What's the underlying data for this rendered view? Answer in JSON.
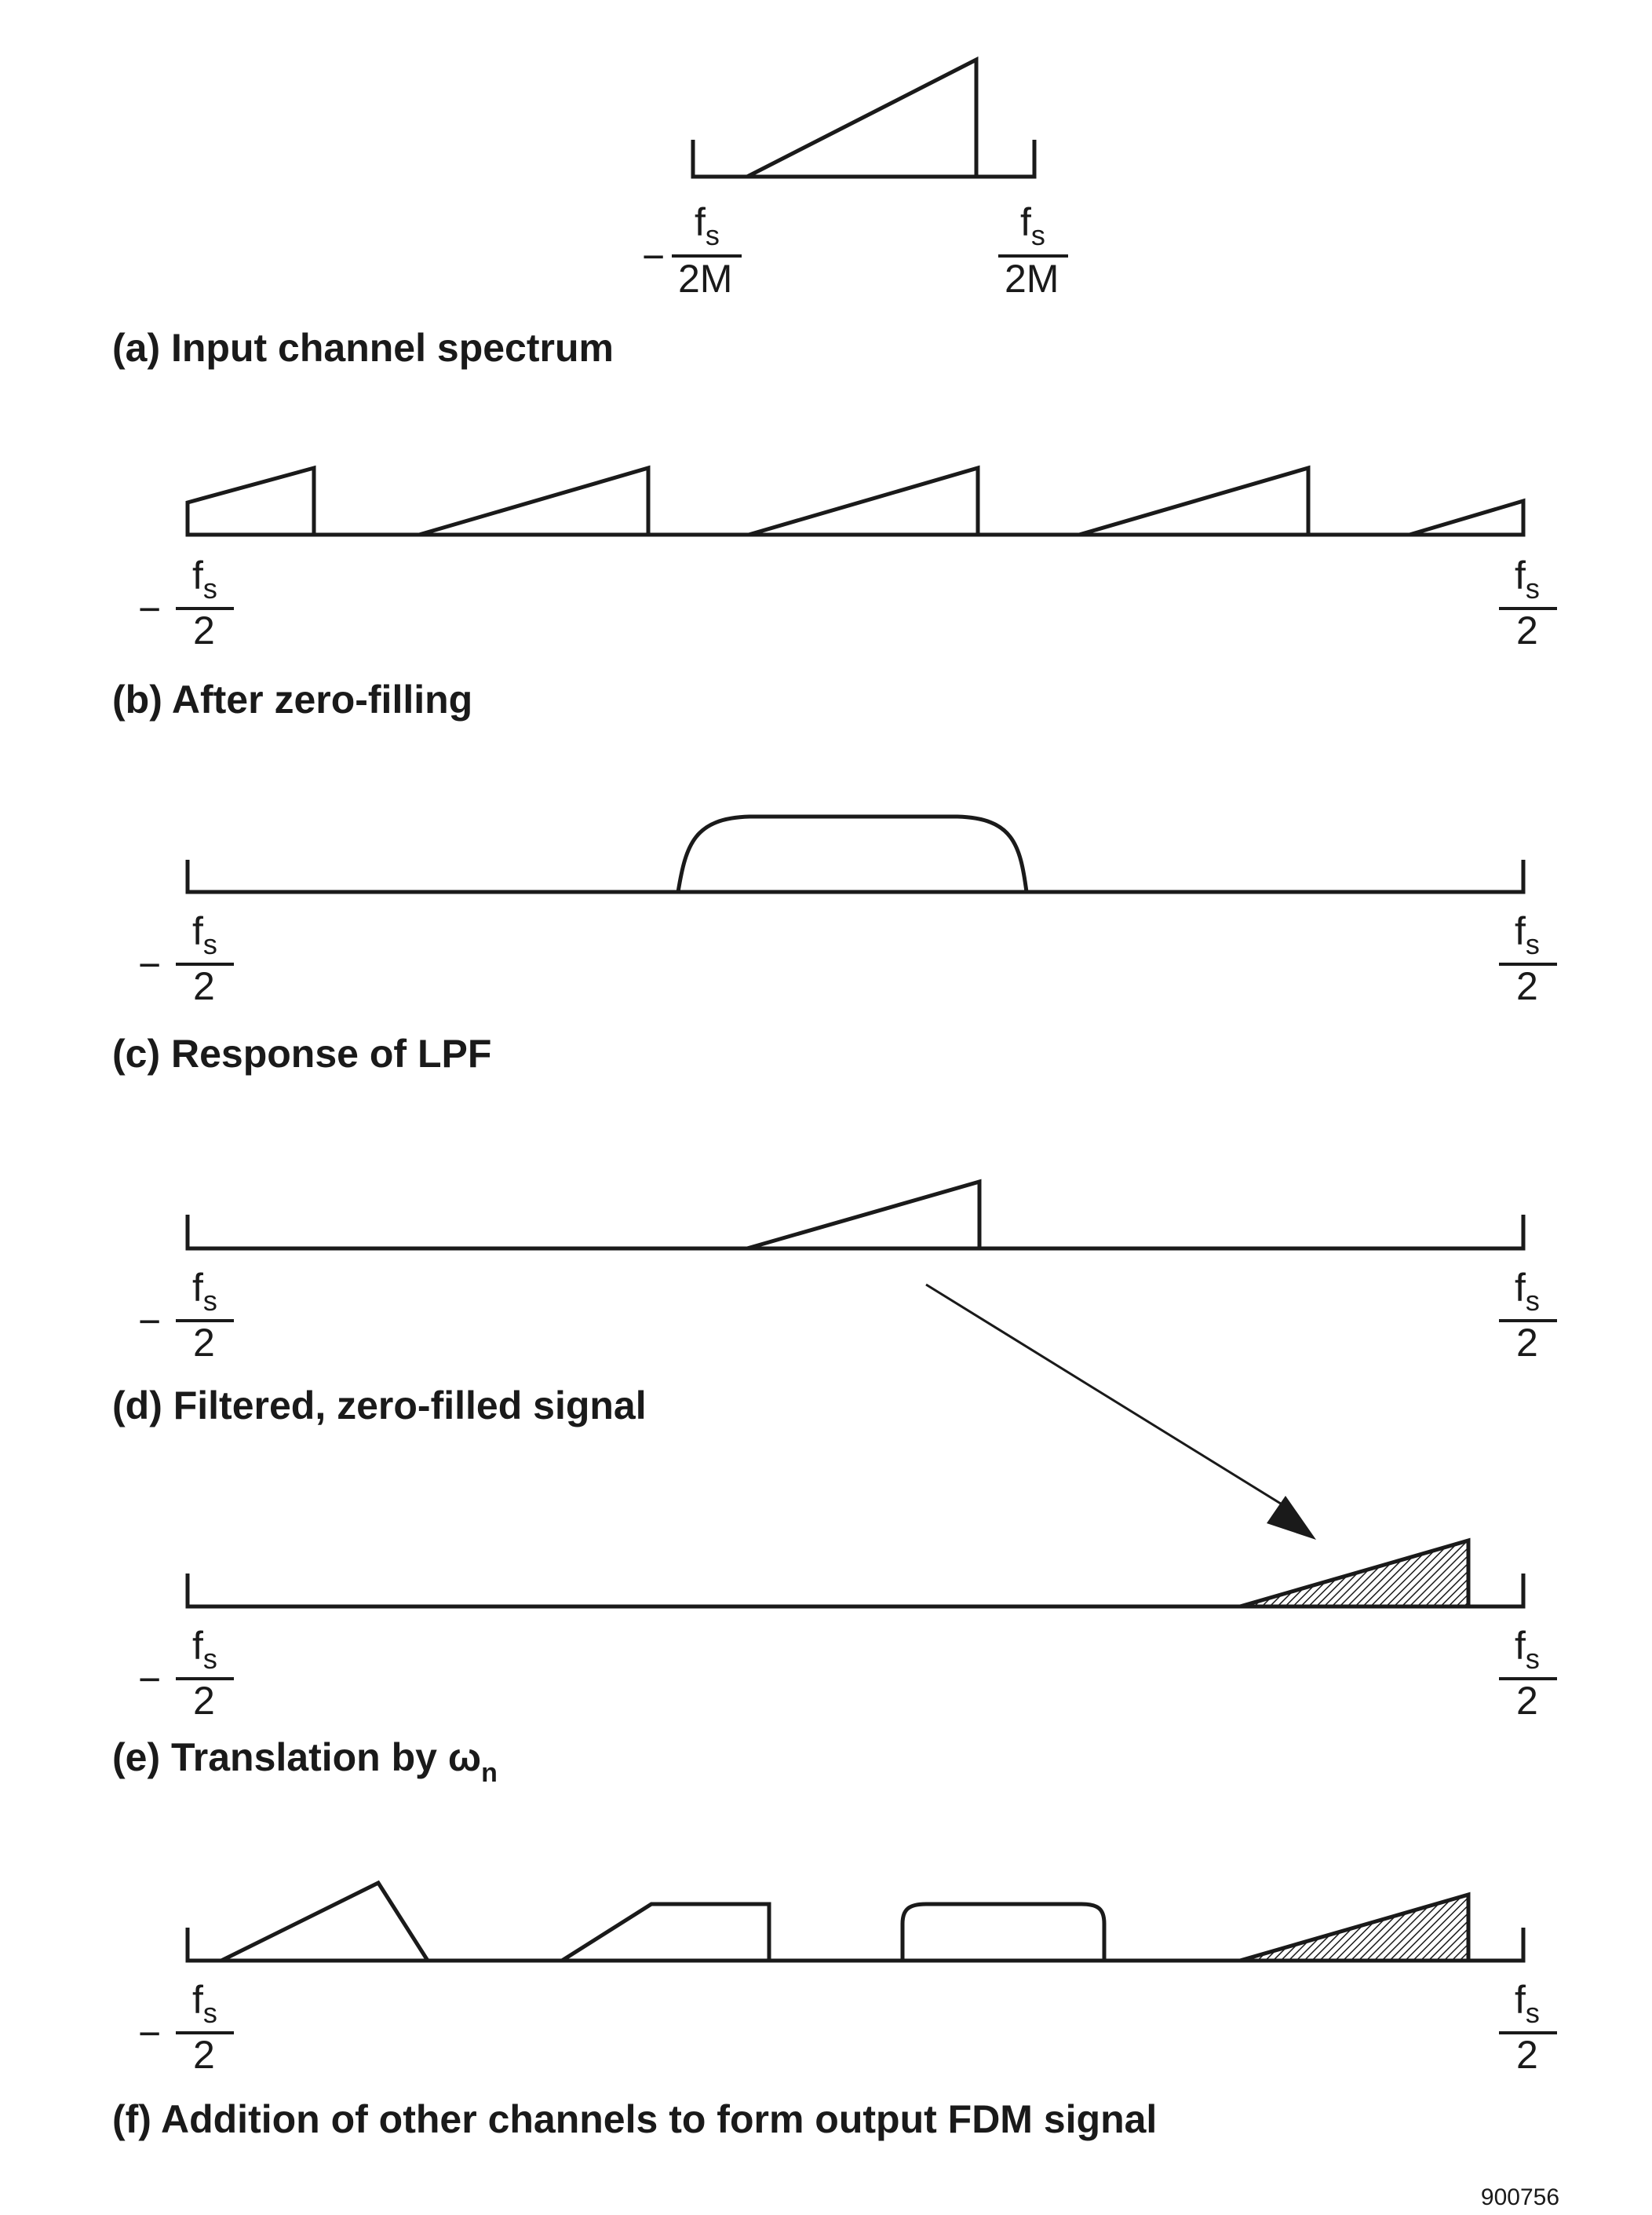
{
  "panels": {
    "a": {
      "caption": "(a) Input channel spectrum",
      "left_label": {
        "sign": "−",
        "num": "f",
        "num_sub": "s",
        "den": "2M"
      },
      "right_label": {
        "sign": "",
        "num": "f",
        "num_sub": "s",
        "den": "2M"
      }
    },
    "b": {
      "caption": "(b) After zero-filling",
      "left_label": {
        "sign": "−",
        "num": "f",
        "num_sub": "s",
        "den": "2"
      },
      "right_label": {
        "sign": "",
        "num": "f",
        "num_sub": "s",
        "den": "2"
      }
    },
    "c": {
      "caption": "(c) Response of LPF",
      "left_label": {
        "sign": "−",
        "num": "f",
        "num_sub": "s",
        "den": "2"
      },
      "right_label": {
        "sign": "",
        "num": "f",
        "num_sub": "s",
        "den": "2"
      }
    },
    "d": {
      "caption": "(d) Filtered, zero-filled signal",
      "left_label": {
        "sign": "−",
        "num": "f",
        "num_sub": "s",
        "den": "2"
      },
      "right_label": {
        "sign": "",
        "num": "f",
        "num_sub": "s",
        "den": "2"
      }
    },
    "e": {
      "caption": "(e) Translation by ω",
      "caption_sub": "n",
      "left_label": {
        "sign": "−",
        "num": "f",
        "num_sub": "s",
        "den": "2"
      },
      "right_label": {
        "sign": "",
        "num": "f",
        "num_sub": "s",
        "den": "2"
      }
    },
    "f": {
      "caption": "(f) Addition of other channels to form output FDM signal",
      "left_label": {
        "sign": "−",
        "num": "f",
        "num_sub": "s",
        "den": "2"
      },
      "right_label": {
        "sign": "",
        "num": "f",
        "num_sub": "s",
        "den": "2"
      }
    }
  },
  "figure_id": "900756",
  "colors": {
    "ink": "#1a1a1a",
    "background": "#ffffff"
  }
}
